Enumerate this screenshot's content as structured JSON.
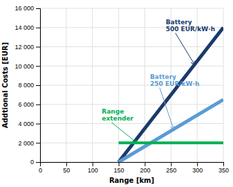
{
  "chart_data": {
    "type": "line",
    "title": "",
    "xlabel": "Range [km]",
    "ylabel": "Addtional Costs [EUR]",
    "x": [
      150,
      350
    ],
    "series": [
      {
        "color": "#1a3a6b",
        "values": [
          0,
          14000
        ]
      },
      {
        "color": "#5b9bd5",
        "values": [
          0,
          6500
        ]
      },
      {
        "color": "#00b050",
        "values": [
          2000,
          2000
        ]
      }
    ],
    "xlim": [
      0,
      350
    ],
    "ylim": [
      0,
      16000
    ],
    "xticks": [
      0,
      50,
      100,
      150,
      200,
      250,
      300,
      350
    ],
    "yticks": [
      0,
      {
        "value": 2000,
        "label": "2 000"
      },
      {
        "value": 4000,
        "label": "4 000"
      },
      {
        "value": 6000,
        "label": "6 000"
      },
      {
        "value": 8000,
        "label": "8 000"
      },
      {
        "value": 10000,
        "label": "10 000"
      },
      {
        "value": 12000,
        "label": "12 000"
      },
      {
        "value": 14000,
        "label": "14 000"
      },
      {
        "value": 16000,
        "label": "16 000"
      }
    ],
    "grid": true,
    "annotations": [
      {
        "text": "Battery\n500 EUR/kW·h",
        "x": 295,
        "y": 10150,
        "text_x": 240,
        "text_y": 13500,
        "color": "#1a3a6b"
      },
      {
        "text": "Battery\n250 EUR/kW·h",
        "x": 255,
        "y": 3412,
        "text_x": 210,
        "text_y": 7800,
        "color": "#5b9bd5"
      },
      {
        "text": "Range\nextender",
        "x": 185,
        "y": 2000,
        "text_x": 118,
        "text_y": 4200,
        "color": "#00b050"
      }
    ]
  }
}
